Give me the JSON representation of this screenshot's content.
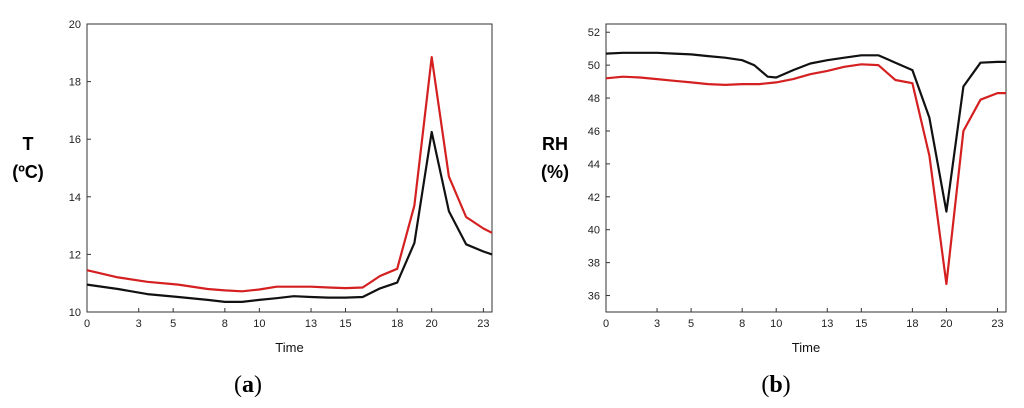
{
  "chart_data": [
    {
      "type": "line",
      "panel_label": "a",
      "ylabel_lines": [
        "T",
        "(ºC)"
      ],
      "xlabel": "Time",
      "xlim": [
        0,
        23.5
      ],
      "ylim": [
        10,
        20
      ],
      "xticks": [
        0,
        3,
        5,
        8,
        10,
        13,
        15,
        18,
        20,
        23
      ],
      "yticks": [
        10,
        12,
        14,
        16,
        18,
        20
      ],
      "grid": false,
      "series": [
        {
          "color": "#d42020",
          "x": [
            0,
            1.8,
            3.5,
            5.3,
            7,
            8,
            9,
            10,
            11,
            12,
            13,
            14,
            15,
            16,
            17,
            18,
            19,
            20,
            21,
            22,
            23,
            23.5
          ],
          "y": [
            11.45,
            11.2,
            11.05,
            10.95,
            10.8,
            10.75,
            10.72,
            10.78,
            10.88,
            10.88,
            10.88,
            10.85,
            10.83,
            10.85,
            11.25,
            11.5,
            13.7,
            18.85,
            14.7,
            13.3,
            12.9,
            12.75
          ]
        },
        {
          "color": "#111111",
          "x": [
            0,
            1.8,
            3.5,
            5.3,
            7,
            8,
            9,
            10,
            11,
            12,
            13,
            14,
            15,
            16,
            17,
            18,
            19,
            20,
            21,
            22,
            23,
            23.5
          ],
          "y": [
            10.95,
            10.8,
            10.62,
            10.52,
            10.42,
            10.35,
            10.35,
            10.42,
            10.48,
            10.55,
            10.52,
            10.5,
            10.5,
            10.52,
            10.82,
            11.02,
            12.4,
            16.25,
            13.5,
            12.35,
            12.1,
            12.0
          ]
        }
      ]
    },
    {
      "type": "line",
      "panel_label": "b",
      "ylabel_lines": [
        "RH",
        "(%)"
      ],
      "xlabel": "Time",
      "xlim": [
        0,
        23.5
      ],
      "ylim": [
        35,
        52.5
      ],
      "xticks": [
        0,
        3,
        5,
        8,
        10,
        13,
        15,
        18,
        20,
        23
      ],
      "yticks": [
        36,
        38,
        40,
        42,
        44,
        46,
        48,
        50,
        52
      ],
      "grid": false,
      "series": [
        {
          "color": "#d42020",
          "x": [
            0,
            1,
            2,
            3,
            4,
            5,
            6,
            7,
            8,
            9,
            10,
            11,
            12,
            13,
            14,
            15,
            16,
            17,
            18,
            19,
            20,
            21,
            22,
            23,
            23.5
          ],
          "y": [
            49.2,
            49.3,
            49.25,
            49.15,
            49.05,
            48.95,
            48.85,
            48.8,
            48.85,
            48.85,
            48.95,
            49.15,
            49.45,
            49.65,
            49.9,
            50.05,
            50.0,
            49.1,
            48.9,
            44.5,
            36.7,
            46.0,
            47.9,
            48.3,
            48.3
          ]
        },
        {
          "color": "#111111",
          "x": [
            0,
            1,
            2,
            3,
            4,
            5,
            6,
            7,
            8,
            8.7,
            9.5,
            10,
            11,
            12,
            13,
            14,
            15,
            16,
            17,
            18,
            19,
            20,
            21,
            22,
            23,
            23.5
          ],
          "y": [
            50.7,
            50.75,
            50.75,
            50.75,
            50.7,
            50.65,
            50.55,
            50.45,
            50.3,
            50.0,
            49.3,
            49.25,
            49.7,
            50.1,
            50.3,
            50.45,
            50.6,
            50.6,
            50.15,
            49.7,
            46.8,
            41.1,
            48.7,
            50.15,
            50.2,
            50.2
          ]
        }
      ]
    }
  ]
}
